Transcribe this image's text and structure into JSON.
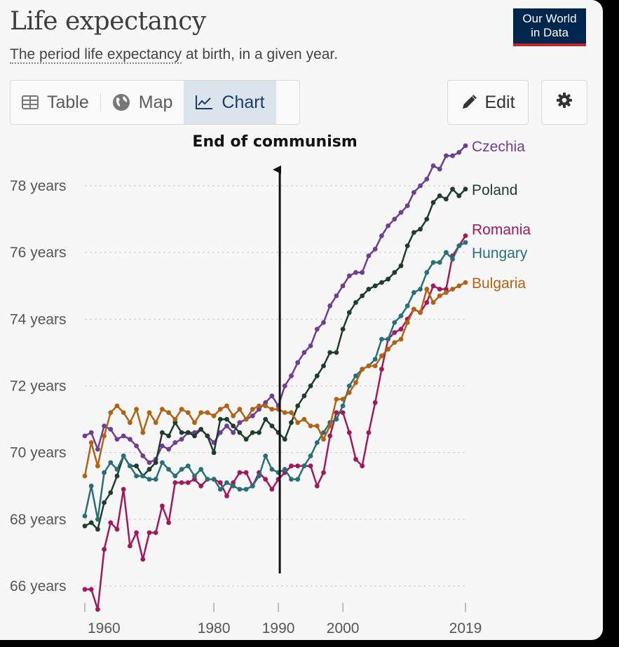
{
  "header": {
    "title": "Life expectancy",
    "subtitle_term": "The period life expectancy",
    "subtitle_rest": " at birth, in a given year."
  },
  "logo": {
    "line1": "Our World",
    "line2": "in Data"
  },
  "tabs": [
    {
      "label": "Table",
      "icon": "table-icon",
      "active": false
    },
    {
      "label": "Map",
      "icon": "globe-icon",
      "active": false
    },
    {
      "label": "Chart",
      "icon": "line-chart-icon",
      "active": true
    }
  ],
  "toolbar": {
    "edit_label": "Edit",
    "settings_icon": "gear-icon"
  },
  "chart_data": {
    "type": "line",
    "title": "Life expectancy",
    "subtitle": "The period life expectancy at birth, in a given year.",
    "xlim": [
      1960,
      2019
    ],
    "ylim": [
      65.3,
      79.6
    ],
    "x_ticks": [
      1960,
      1980,
      1990,
      2000,
      2019
    ],
    "y_ticks": [
      {
        "value": 66,
        "label": "66 years"
      },
      {
        "value": 68,
        "label": "68 years"
      },
      {
        "value": 70,
        "label": "70 years"
      },
      {
        "value": 72,
        "label": "72 years"
      },
      {
        "value": 74,
        "label": "74 years"
      },
      {
        "value": 76,
        "label": "76 years"
      },
      {
        "value": 78,
        "label": "78 years"
      }
    ],
    "grid": true,
    "legend": "right-end labels",
    "annotation": {
      "text": "End of communism",
      "x": 1990
    },
    "series": [
      {
        "name": "Czechia",
        "color": "#6d3e91",
        "x": [
          1960,
          1961,
          1962,
          1963,
          1964,
          1965,
          1966,
          1967,
          1968,
          1969,
          1970,
          1971,
          1972,
          1973,
          1974,
          1975,
          1976,
          1977,
          1978,
          1979,
          1980,
          1981,
          1982,
          1983,
          1984,
          1985,
          1986,
          1987,
          1988,
          1989,
          1990,
          1991,
          1992,
          1993,
          1994,
          1995,
          1996,
          1997,
          1998,
          1999,
          2000,
          2001,
          2002,
          2003,
          2004,
          2005,
          2006,
          2007,
          2008,
          2009,
          2010,
          2011,
          2012,
          2013,
          2014,
          2015,
          2016,
          2017,
          2018,
          2019
        ],
        "values": [
          70.5,
          70.6,
          70.1,
          70.8,
          70.7,
          70.4,
          70.5,
          70.4,
          70.2,
          69.9,
          69.7,
          69.8,
          70.2,
          70.1,
          70.3,
          70.4,
          70.6,
          70.6,
          70.7,
          70.5,
          70.3,
          70.6,
          70.8,
          70.6,
          70.9,
          71.0,
          71.1,
          71.3,
          71.5,
          71.7,
          71.4,
          72.0,
          72.3,
          72.7,
          73.0,
          73.2,
          73.7,
          73.9,
          74.4,
          74.7,
          75.0,
          75.3,
          75.4,
          75.4,
          75.9,
          76.1,
          76.5,
          76.8,
          77.0,
          77.2,
          77.4,
          77.8,
          78.0,
          78.2,
          78.6,
          78.5,
          78.9,
          78.9,
          79.0,
          79.2
        ]
      },
      {
        "name": "Poland",
        "color": "#1e3e2b",
        "x": [
          1960,
          1961,
          1962,
          1963,
          1964,
          1965,
          1966,
          1967,
          1968,
          1969,
          1970,
          1971,
          1972,
          1973,
          1974,
          1975,
          1976,
          1977,
          1978,
          1979,
          1980,
          1981,
          1982,
          1983,
          1984,
          1985,
          1986,
          1987,
          1988,
          1989,
          1990,
          1991,
          1992,
          1993,
          1994,
          1995,
          1996,
          1997,
          1998,
          1999,
          2000,
          2001,
          2002,
          2003,
          2004,
          2005,
          2006,
          2007,
          2008,
          2009,
          2010,
          2011,
          2012,
          2013,
          2014,
          2015,
          2016,
          2017,
          2018,
          2019
        ],
        "values": [
          67.8,
          67.9,
          67.7,
          68.5,
          68.8,
          69.3,
          69.9,
          69.6,
          69.6,
          69.3,
          69.5,
          69.7,
          70.6,
          70.5,
          70.9,
          70.6,
          70.6,
          70.5,
          70.7,
          70.5,
          70.0,
          71.0,
          71.0,
          70.8,
          70.6,
          70.4,
          70.6,
          70.6,
          71.0,
          70.8,
          70.6,
          70.4,
          70.9,
          71.4,
          71.7,
          72.0,
          72.3,
          72.6,
          73.0,
          73.0,
          73.7,
          74.2,
          74.5,
          74.7,
          74.9,
          75.0,
          75.1,
          75.2,
          75.4,
          75.6,
          76.2,
          76.6,
          76.7,
          77.0,
          77.5,
          77.7,
          77.6,
          77.9,
          77.7,
          77.9
        ]
      },
      {
        "name": "Romania",
        "color": "#a2185b",
        "x": [
          1960,
          1961,
          1962,
          1963,
          1964,
          1965,
          1966,
          1967,
          1968,
          1969,
          1970,
          1971,
          1972,
          1973,
          1974,
          1975,
          1976,
          1977,
          1978,
          1979,
          1980,
          1981,
          1982,
          1983,
          1984,
          1985,
          1986,
          1987,
          1988,
          1989,
          1990,
          1991,
          1992,
          1993,
          1994,
          1995,
          1996,
          1997,
          1998,
          1999,
          2000,
          2001,
          2002,
          2003,
          2004,
          2005,
          2006,
          2007,
          2008,
          2009,
          2010,
          2011,
          2012,
          2013,
          2014,
          2015,
          2016,
          2017,
          2018,
          2019
        ],
        "values": [
          65.9,
          65.9,
          65.3,
          67.1,
          67.9,
          67.7,
          68.9,
          67.2,
          67.6,
          66.8,
          67.6,
          67.6,
          68.4,
          67.9,
          69.1,
          69.1,
          69.1,
          69.2,
          69.0,
          69.2,
          69.2,
          69.1,
          68.7,
          69.1,
          69.4,
          69.4,
          69.0,
          69.4,
          69.2,
          68.9,
          69.2,
          69.4,
          69.6,
          69.6,
          69.6,
          69.6,
          69.0,
          69.4,
          70.5,
          71.2,
          71.2,
          70.6,
          69.8,
          69.6,
          70.6,
          71.5,
          72.5,
          73.4,
          73.6,
          73.7,
          74.0,
          74.3,
          74.2,
          74.5,
          75.0,
          74.9,
          74.9,
          75.9,
          76.2,
          76.5
        ]
      },
      {
        "name": "Hungary",
        "color": "#286f78",
        "x": [
          1960,
          1961,
          1962,
          1963,
          1964,
          1965,
          1966,
          1967,
          1968,
          1969,
          1970,
          1971,
          1972,
          1973,
          1974,
          1975,
          1976,
          1977,
          1978,
          1979,
          1980,
          1981,
          1982,
          1983,
          1984,
          1985,
          1986,
          1987,
          1988,
          1989,
          1990,
          1991,
          1992,
          1993,
          1994,
          1995,
          1996,
          1997,
          1998,
          1999,
          2000,
          2001,
          2002,
          2003,
          2004,
          2005,
          2006,
          2007,
          2008,
          2009,
          2010,
          2011,
          2012,
          2013,
          2014,
          2015,
          2016,
          2017,
          2018,
          2019
        ],
        "values": [
          68.1,
          69.0,
          68.0,
          69.4,
          69.7,
          69.5,
          69.9,
          69.6,
          69.3,
          69.3,
          69.2,
          69.2,
          69.7,
          69.5,
          69.3,
          69.5,
          69.6,
          69.3,
          69.5,
          69.2,
          69.2,
          68.9,
          69.1,
          69.0,
          68.9,
          68.9,
          69.0,
          69.3,
          69.9,
          69.5,
          69.4,
          69.5,
          69.2,
          69.2,
          69.6,
          69.9,
          70.3,
          70.6,
          70.9,
          71.0,
          71.4,
          72.0,
          72.3,
          72.5,
          72.6,
          72.8,
          73.4,
          73.4,
          73.9,
          74.1,
          74.4,
          74.8,
          74.9,
          75.4,
          75.7,
          75.7,
          76.0,
          75.8,
          76.2,
          76.3
        ]
      },
      {
        "name": "Bulgaria",
        "color": "#b16214",
        "x": [
          1960,
          1961,
          1962,
          1963,
          1964,
          1965,
          1966,
          1967,
          1968,
          1969,
          1970,
          1971,
          1972,
          1973,
          1974,
          1975,
          1976,
          1977,
          1978,
          1979,
          1980,
          1981,
          1982,
          1983,
          1984,
          1985,
          1986,
          1987,
          1988,
          1989,
          1990,
          1991,
          1992,
          1993,
          1994,
          1995,
          1996,
          1997,
          1998,
          1999,
          2000,
          2001,
          2002,
          2003,
          2004,
          2005,
          2006,
          2007,
          2008,
          2009,
          2010,
          2011,
          2012,
          2013,
          2014,
          2015,
          2016,
          2017,
          2018,
          2019
        ],
        "values": [
          69.3,
          70.3,
          69.6,
          70.5,
          71.2,
          71.4,
          71.2,
          70.9,
          71.3,
          70.6,
          71.2,
          70.9,
          71.3,
          71.2,
          71.0,
          71.3,
          71.2,
          70.9,
          71.2,
          71.2,
          71.1,
          71.3,
          71.4,
          71.1,
          71.3,
          71.0,
          71.3,
          71.4,
          71.4,
          71.3,
          71.3,
          71.2,
          71.2,
          70.9,
          71.0,
          70.8,
          70.8,
          70.4,
          70.8,
          71.6,
          71.6,
          71.8,
          72.1,
          72.5,
          72.6,
          72.6,
          72.9,
          73.1,
          73.3,
          73.4,
          73.9,
          74.3,
          74.2,
          74.9,
          74.5,
          74.7,
          74.8,
          74.9,
          75.0,
          75.1
        ]
      }
    ]
  }
}
